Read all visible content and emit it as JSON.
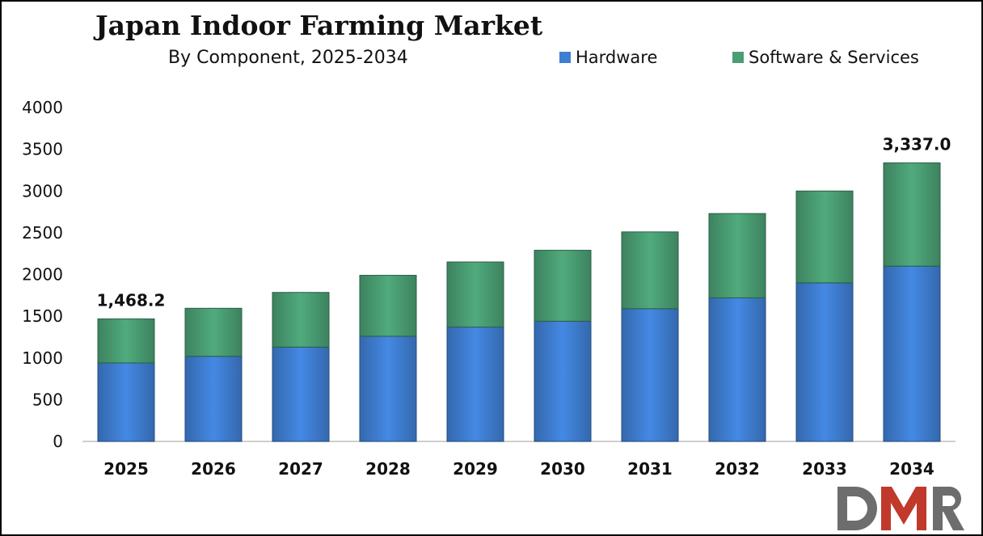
{
  "chart_data": {
    "type": "bar",
    "stacked": true,
    "title": "Japan Indoor Farming Market",
    "subtitle": "By Component, 2025-2034",
    "categories": [
      "2025",
      "2026",
      "2027",
      "2028",
      "2029",
      "2030",
      "2031",
      "2032",
      "2033",
      "2034"
    ],
    "series": [
      {
        "name": "Hardware",
        "color": "#3f7fd3",
        "values": [
          940,
          1020,
          1130,
          1260,
          1370,
          1440,
          1590,
          1720,
          1900,
          2100
        ]
      },
      {
        "name": "Software & Services",
        "color": "#4a9e74",
        "values": [
          528.2,
          575,
          655,
          730,
          780,
          850,
          920,
          1010,
          1100,
          1237.0
        ]
      }
    ],
    "data_labels": [
      {
        "category": "2025",
        "text": "1,468.2"
      },
      {
        "category": "2034",
        "text": "3,337.0"
      }
    ],
    "ylim": [
      0,
      4000
    ],
    "yticks": [
      0,
      500,
      1000,
      1500,
      2000,
      2500,
      3000,
      3500,
      4000
    ],
    "xlabel": "",
    "ylabel": "",
    "grid": false,
    "legend_position": "top-right"
  },
  "logo": {
    "text": "DMR",
    "colors": [
      "#6d6d6d",
      "#c0392b"
    ]
  }
}
